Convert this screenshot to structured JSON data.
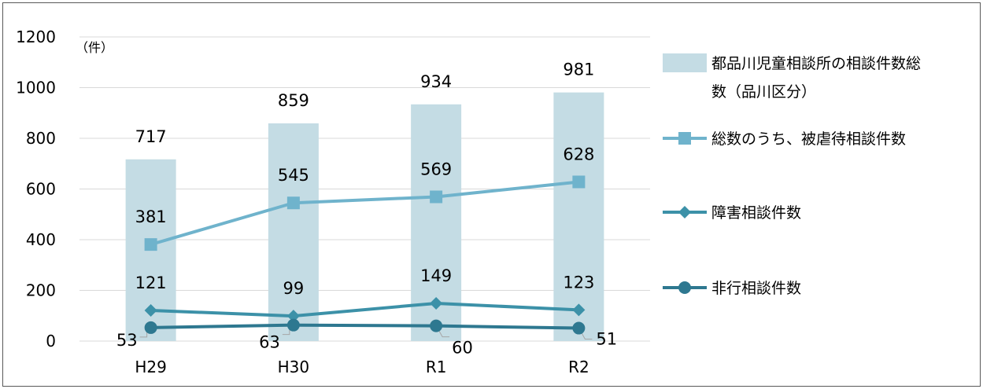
{
  "chart_data": {
    "type": "bar",
    "y_unit": "（件）",
    "categories": [
      "H29",
      "H30",
      "R1",
      "R2"
    ],
    "ylim": [
      0,
      1200
    ],
    "yticks": [
      0,
      200,
      400,
      600,
      800,
      1000,
      1200
    ],
    "grid": true,
    "legend_position": "right",
    "series": [
      {
        "name": "都品川児童相談所の相談件数総数（品川区分）",
        "name_lines": [
          "都品川児童相談所の相談件数総",
          "数（品川区分）"
        ],
        "kind": "bar",
        "color": "#c4dce4",
        "values": [
          717,
          859,
          934,
          981
        ]
      },
      {
        "name": "総数のうち、被虐待相談件数",
        "kind": "line",
        "marker": "square",
        "color": "#6fb3cc",
        "values": [
          381,
          545,
          569,
          628
        ]
      },
      {
        "name": "障害相談件数",
        "kind": "line",
        "marker": "diamond",
        "color": "#3c91a8",
        "values": [
          121,
          99,
          149,
          123
        ]
      },
      {
        "name": "非行相談件数",
        "kind": "line",
        "marker": "circle",
        "color": "#2e7890",
        "values": [
          53,
          63,
          60,
          51
        ]
      }
    ]
  }
}
